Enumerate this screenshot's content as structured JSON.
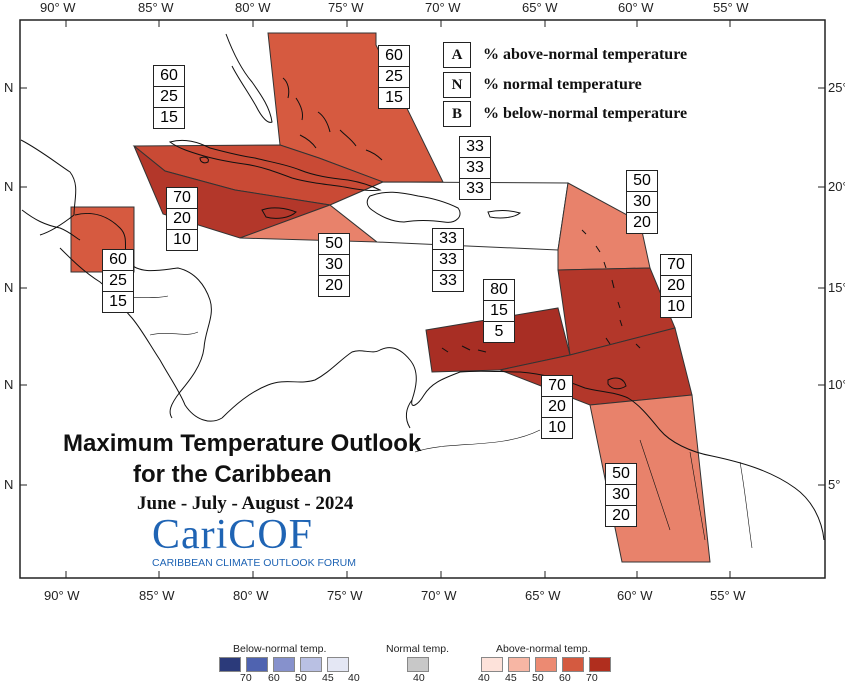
{
  "map": {
    "title_line1": "Maximum Temperature Outlook",
    "title_line2": "for the Caribbean",
    "season": "June - July - August - 2024",
    "logo_text": "CariCOF",
    "logo_subtitle": "CARIBBEAN CLIMATE OUTLOOK FORUM"
  },
  "key": [
    {
      "letter": "A",
      "text": "% above-normal temperature"
    },
    {
      "letter": "N",
      "text": "% normal temperature"
    },
    {
      "letter": "B",
      "text": "% below-normal temperature"
    }
  ],
  "lon_labels": [
    "90° W",
    "85° W",
    "80° W",
    "75° W",
    "70° W",
    "65° W",
    "60° W",
    "55° W"
  ],
  "lat_labels": [
    "25°",
    "20°",
    "15°",
    "10°",
    "5°"
  ],
  "lat_left_labels": [
    "N",
    "N",
    "N",
    "N",
    "N"
  ],
  "regions": [
    {
      "name": "bahamas",
      "probs": [
        "60",
        "25",
        "15"
      ],
      "color": "#d65a40"
    },
    {
      "name": "cuba",
      "probs": [
        "60",
        "25",
        "15"
      ],
      "color": "#c94a35"
    },
    {
      "name": "jamaica-cayman",
      "probs": [
        "70",
        "20",
        "10"
      ],
      "color": "#b3372a"
    },
    {
      "name": "belize",
      "probs": [
        "60",
        "25",
        "15"
      ],
      "color": "#d65a40"
    },
    {
      "name": "south-jamaica",
      "probs": [
        "50",
        "30",
        "20"
      ],
      "color": "#e8826b"
    },
    {
      "name": "hispaniola",
      "probs": [
        "33",
        "33",
        "33"
      ],
      "color": "#ffffff"
    },
    {
      "name": "puerto-rico",
      "probs": [
        "33",
        "33",
        "33"
      ],
      "color": "#ffffff"
    },
    {
      "name": "leeward-islands",
      "probs": [
        "50",
        "30",
        "20"
      ],
      "color": "#e8826b"
    },
    {
      "name": "windward-islands",
      "probs": [
        "70",
        "20",
        "10"
      ],
      "color": "#b3372a"
    },
    {
      "name": "abc-islands",
      "probs": [
        "80",
        "15",
        "5"
      ],
      "color": "#a82e24"
    },
    {
      "name": "trinidad",
      "probs": [
        "70",
        "20",
        "10"
      ],
      "color": "#b3372a"
    },
    {
      "name": "guianas",
      "probs": [
        "50",
        "30",
        "20"
      ],
      "color": "#e8826b"
    }
  ],
  "legend": {
    "below_label": "Below-normal temp.",
    "normal_label": "Normal temp.",
    "above_label": "Above-normal temp.",
    "below_values": [
      "70",
      "60",
      "50",
      "45",
      "40"
    ],
    "normal_value": "40",
    "above_values": [
      "40",
      "45",
      "50",
      "60",
      "70"
    ],
    "below_colors": [
      "#2b3a7a",
      "#4f63b0",
      "#8691cc",
      "#b9c0e3",
      "#e4e7f4"
    ],
    "normal_color": "#c8c8c8",
    "above_colors": [
      "#fde2da",
      "#f7b6a4",
      "#ec8a72",
      "#d45a40",
      "#b02e1e"
    ]
  }
}
